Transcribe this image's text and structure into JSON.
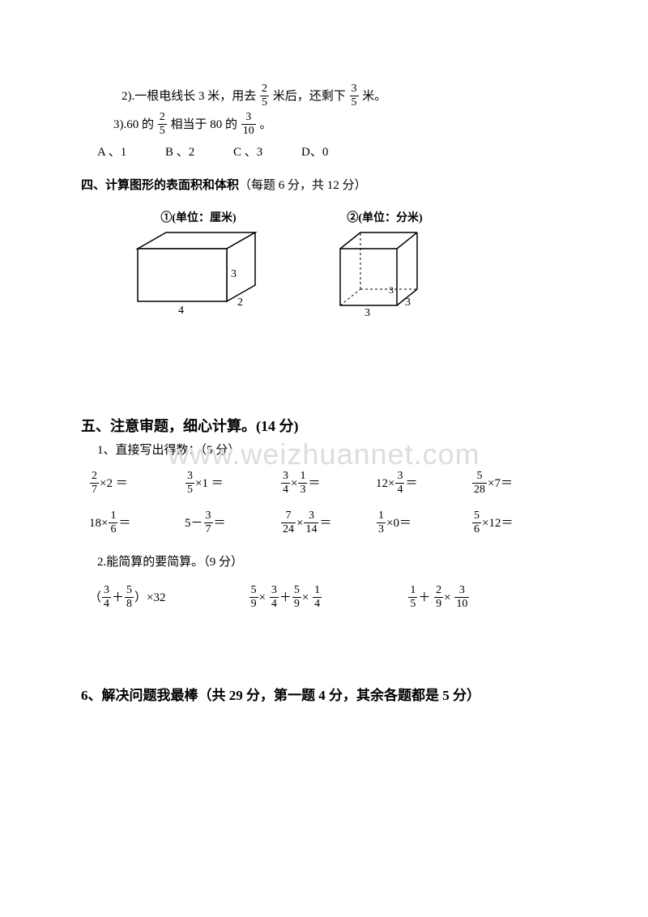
{
  "q2": {
    "prefix": "2).一根电线长 3 米，用去",
    "frac1": {
      "num": "2",
      "den": "5"
    },
    "mid": "米后，还剩下",
    "frac2": {
      "num": "3",
      "den": "5"
    },
    "suffix": "米。"
  },
  "q3": {
    "prefix": "3).60 的",
    "frac1": {
      "num": "2",
      "den": "5"
    },
    "mid": "相当于 80 的",
    "frac2": {
      "num": "3",
      "den": "10"
    },
    "suffix": " 。"
  },
  "choices": {
    "a": "A 、1",
    "b": "B 、2",
    "c": "C 、3",
    "d": "D、0"
  },
  "section4": {
    "title": "四、计算图形的表面积和体积",
    "points": "（每题 6 分，共 12 分）",
    "fig1": {
      "label": "①(单位：厘米)",
      "w": "4",
      "d": "2",
      "h": "3",
      "stroke": "#000000",
      "fill": "#ffffff"
    },
    "fig2": {
      "label": "②(单位：分米)",
      "w": "3",
      "d": "3",
      "h": "3",
      "stroke": "#000000",
      "fill": "#ffffff"
    }
  },
  "watermark": "www.weizhuannet.com",
  "section5": {
    "title": "五、注意审题，细心计算。(14 分)",
    "sub1": "1、直接写出得数：（5 分）",
    "row1": [
      {
        "type": "fracXnum",
        "num": "2",
        "den": "7",
        "op": "×",
        "rhs": "2",
        "eq": " ＝"
      },
      {
        "type": "fracXnum",
        "num": "3",
        "den": "5",
        "op": "×",
        "rhs": "1",
        "eq": " ＝"
      },
      {
        "type": "fracXfrac",
        "n1": "3",
        "d1": "4",
        "op": "×",
        "n2": "1",
        "d2": "3",
        "eq": "＝"
      },
      {
        "type": "numXfrac",
        "lhs": "12",
        "op": "×",
        "num": "3",
        "den": "4",
        "eq": "＝"
      },
      {
        "type": "fracXnum",
        "num": "5",
        "den": "28",
        "op": "×",
        "rhs": "7",
        "eq": "＝"
      }
    ],
    "row2": [
      {
        "type": "numXfrac",
        "lhs": "18",
        "op": "×",
        "num": "1",
        "den": "6",
        "eq": "＝"
      },
      {
        "type": "numMinusFrac",
        "lhs": "5",
        "op": "－",
        "num": "3",
        "den": "7",
        "eq": "＝"
      },
      {
        "type": "fracXfrac",
        "n1": "7",
        "d1": "24",
        "op": "×",
        "n2": "3",
        "d2": "14",
        "eq": "＝"
      },
      {
        "type": "fracXnum",
        "num": "1",
        "den": "3",
        "op": "×",
        "rhs": "0",
        "eq": "＝"
      },
      {
        "type": "fracXnum",
        "num": "5",
        "den": "6",
        "op": "×",
        "rhs": "12",
        "eq": "＝"
      }
    ],
    "sub2": "2.能简算的要简算。（9 分）",
    "row3": [
      {
        "html": "（<F n='3' d='4'/>＋<F n='5' d='8'/>）×32"
      },
      {
        "html": "<F n='5' d='9'/>× <F n='3' d='4'/>＋<F n='5' d='9'/>× <F n='1' d='4'/>"
      },
      {
        "html": "<F n='1' d='5'/>＋ <F n='2' d='9'/>× <F n='3' d='10'/>"
      }
    ]
  },
  "section6": {
    "title": "6、解决问题我最棒（共 29 分，第一题 4 分，其余各题都是 5 分）"
  }
}
